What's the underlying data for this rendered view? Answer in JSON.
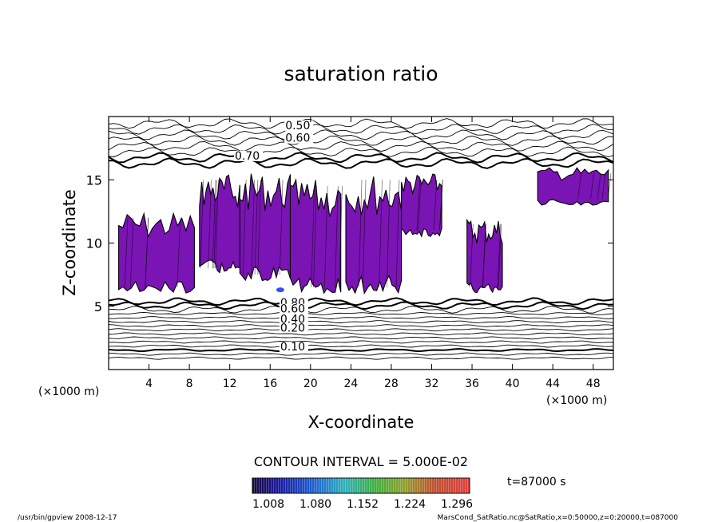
{
  "chart_data": {
    "type": "heatmap",
    "title": "saturation ratio",
    "xlabel": "X-coordinate",
    "ylabel": "Z-coordinate",
    "x_unit": "(×1000 m)",
    "y_unit": "(×1000 m)",
    "xlim": [
      0,
      50
    ],
    "ylim": [
      0,
      20
    ],
    "x_ticks": [
      4,
      8,
      12,
      16,
      20,
      24,
      28,
      32,
      36,
      40,
      44,
      48
    ],
    "y_ticks": [
      5,
      10,
      15
    ],
    "contour_interval": "CONTOUR INTERVAL = 5.000E-02",
    "contour_labels": [
      {
        "text": "0.50",
        "x": 17.5,
        "z": 19.0
      },
      {
        "text": "0.60",
        "x": 17.5,
        "z": 18.0
      },
      {
        "text": "0.70",
        "x": 12.5,
        "z": 16.6
      },
      {
        "text": "0.80",
        "x": 17.0,
        "z": 5.0
      },
      {
        "text": "0.60",
        "x": 17.0,
        "z": 4.5
      },
      {
        "text": "0.40",
        "x": 17.0,
        "z": 3.7
      },
      {
        "text": "0.20",
        "x": 17.0,
        "z": 3.0
      },
      {
        "text": "0.10",
        "x": 17.0,
        "z": 1.5
      }
    ],
    "supersaturated_regions": [
      {
        "x": [
          1.0,
          8.5
        ],
        "z": [
          6.0,
          12.5
        ]
      },
      {
        "x": [
          9.0,
          13.0
        ],
        "z": [
          7.5,
          15.5
        ]
      },
      {
        "x": [
          13.0,
          18.0
        ],
        "z": [
          7.0,
          15.5
        ]
      },
      {
        "x": [
          18.0,
          23.0
        ],
        "z": [
          6.0,
          15.0
        ]
      },
      {
        "x": [
          23.5,
          29.0
        ],
        "z": [
          6.0,
          15.5
        ]
      },
      {
        "x": [
          29.0,
          33.0
        ],
        "z": [
          10.5,
          15.5
        ]
      },
      {
        "x": [
          35.5,
          39.0
        ],
        "z": [
          6.0,
          12.0
        ]
      },
      {
        "x": [
          42.5,
          49.5
        ],
        "z": [
          13.0,
          16.0
        ]
      }
    ],
    "colorbar": {
      "min": 1.008,
      "max": 1.296,
      "tick_labels": [
        "1.008",
        "1.080",
        "1.152",
        "1.224",
        "1.296"
      ]
    },
    "time_label": "t=87000 s",
    "footer_left": "/usr/bin/gpview   2008-12-17",
    "footer_right": "MarsCond_SatRatio.nc@SatRatio,x=0:50000,z=0:20000,t=087000",
    "colors": {
      "fill": "#7a14b4",
      "contour": "#000000",
      "accent_blue": "#3050ff"
    }
  }
}
